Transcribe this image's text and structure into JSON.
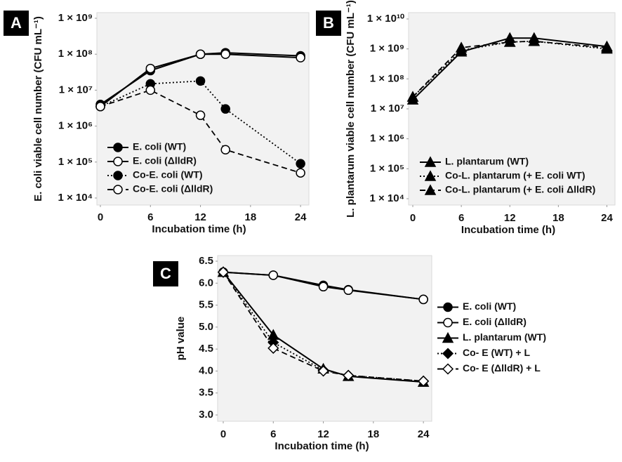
{
  "chart_data": [
    {
      "type": "line",
      "panel": "A",
      "x_label": "Incubation time (h)",
      "y_label": "E. coli viable cell number (CFU mL⁻¹)",
      "x": [
        0,
        6,
        12,
        15,
        24
      ],
      "xlim": [
        0,
        25
      ],
      "xticks": [
        0,
        6,
        12,
        18,
        24
      ],
      "ylim": [
        10000,
        1000000000
      ],
      "log_y": true,
      "yticks": [
        {
          "value": 10000,
          "label": "1 × 10⁴"
        },
        {
          "value": 100000,
          "label": "1 × 10⁵"
        },
        {
          "value": 1000000,
          "label": "1 × 10⁶"
        },
        {
          "value": 10000000,
          "label": "1 × 10⁷"
        },
        {
          "value": 100000000,
          "label": "1 × 10⁸"
        },
        {
          "value": 1000000000,
          "label": "1 × 10⁹"
        }
      ],
      "legend": "lower left",
      "series": [
        {
          "name": "E. coli (WT)",
          "color": "#000000",
          "marker": "circle-filled",
          "line": "solid",
          "values": [
            4000000,
            35000000,
            100000000,
            110000000,
            90000000
          ]
        },
        {
          "name": "E. coli (ΔlldR)",
          "color": "#000000",
          "marker": "circle-open",
          "line": "solid",
          "values": [
            3500000,
            40000000,
            100000000,
            100000000,
            80000000
          ]
        },
        {
          "name": "Co-E. coli (WT)",
          "color": "#000000",
          "marker": "circle-filled",
          "line": "dotted",
          "values": [
            3500000,
            15000000,
            18000000,
            3000000,
            90000
          ]
        },
        {
          "name": "Co-E. coli (ΔlldR)",
          "color": "#000000",
          "marker": "circle-open",
          "line": "dashed",
          "values": [
            3500000,
            10000000,
            2000000,
            220000,
            50000
          ]
        }
      ]
    },
    {
      "type": "line",
      "panel": "B",
      "x_label": "Incubation time (h)",
      "y_label": "L. plantarum viable cell number (CFU mL⁻¹)",
      "x": [
        0,
        6,
        12,
        15,
        24
      ],
      "xlim": [
        0,
        25
      ],
      "xticks": [
        0,
        6,
        12,
        18,
        24
      ],
      "ylim": [
        10000,
        10000000000
      ],
      "log_y": true,
      "yticks": [
        {
          "value": 10000,
          "label": "1 × 10⁴"
        },
        {
          "value": 100000,
          "label": "1 × 10⁵"
        },
        {
          "value": 1000000,
          "label": "1 × 10⁶"
        },
        {
          "value": 10000000,
          "label": "1 × 10⁷"
        },
        {
          "value": 100000000,
          "label": "1 × 10⁸"
        },
        {
          "value": 1000000000,
          "label": "1 × 10⁹"
        },
        {
          "value": 10000000000,
          "label": "1 × 10¹⁰"
        }
      ],
      "legend": "lower left",
      "series": [
        {
          "name": "L. plantarum (WT)",
          "color": "#000000",
          "marker": "triangle",
          "line": "solid",
          "values": [
            20000000,
            800000000,
            2300000000,
            2300000000,
            1200000000
          ]
        },
        {
          "name": "Co-L. plantarum (+ E. coli WT)",
          "color": "#000000",
          "marker": "triangle",
          "line": "dotted",
          "values": [
            25000000,
            900000000,
            1700000000,
            1800000000,
            1000000000
          ]
        },
        {
          "name": "Co-L. plantarum (+ E. coli ΔlldR)",
          "color": "#000000",
          "marker": "triangle",
          "line": "dashed",
          "values": [
            25000000,
            1100000000,
            1700000000,
            1800000000,
            1100000000
          ]
        }
      ]
    },
    {
      "type": "line",
      "panel": "C",
      "x_label": "Incubation time (h)",
      "y_label": "pH value",
      "x": [
        0,
        6,
        12,
        15,
        24
      ],
      "xlim": [
        0,
        25
      ],
      "xticks": [
        0,
        6,
        12,
        18,
        24
      ],
      "ylim": [
        3,
        6.5
      ],
      "log_y": false,
      "yticks": [
        {
          "value": 3,
          "label": "3.0"
        },
        3.5,
        {
          "value": 4,
          "label": "4.0"
        },
        4.5,
        {
          "value": 5,
          "label": "5.0"
        },
        5.5,
        {
          "value": 6,
          "label": "6.0"
        },
        6.5
      ],
      "legend": "right",
      "series": [
        {
          "name": "E. coli (WT)",
          "color": "#000000",
          "marker": "circle-filled",
          "line": "solid",
          "values": [
            6.25,
            6.18,
            5.95,
            5.85,
            5.63
          ]
        },
        {
          "name": "E. coli (ΔlldR)",
          "color": "#000000",
          "marker": "circle-open",
          "line": "solid",
          "values": [
            6.25,
            6.18,
            5.92,
            5.84,
            5.63
          ]
        },
        {
          "name": "L. plantarum (WT)",
          "color": "#000000",
          "marker": "triangle",
          "line": "solid",
          "values": [
            6.25,
            4.82,
            4.05,
            3.88,
            3.75
          ]
        },
        {
          "name": "Co- E (WT) + L",
          "color": "#000000",
          "marker": "diamond-filled",
          "line": "dotted",
          "values": [
            6.25,
            4.65,
            4.02,
            3.9,
            3.77
          ]
        },
        {
          "name": "Co- E (ΔlldR) + L",
          "color": "#000000",
          "marker": "diamond-open",
          "line": "dashed",
          "values": [
            6.25,
            4.52,
            4.0,
            3.9,
            3.77
          ]
        }
      ]
    }
  ]
}
